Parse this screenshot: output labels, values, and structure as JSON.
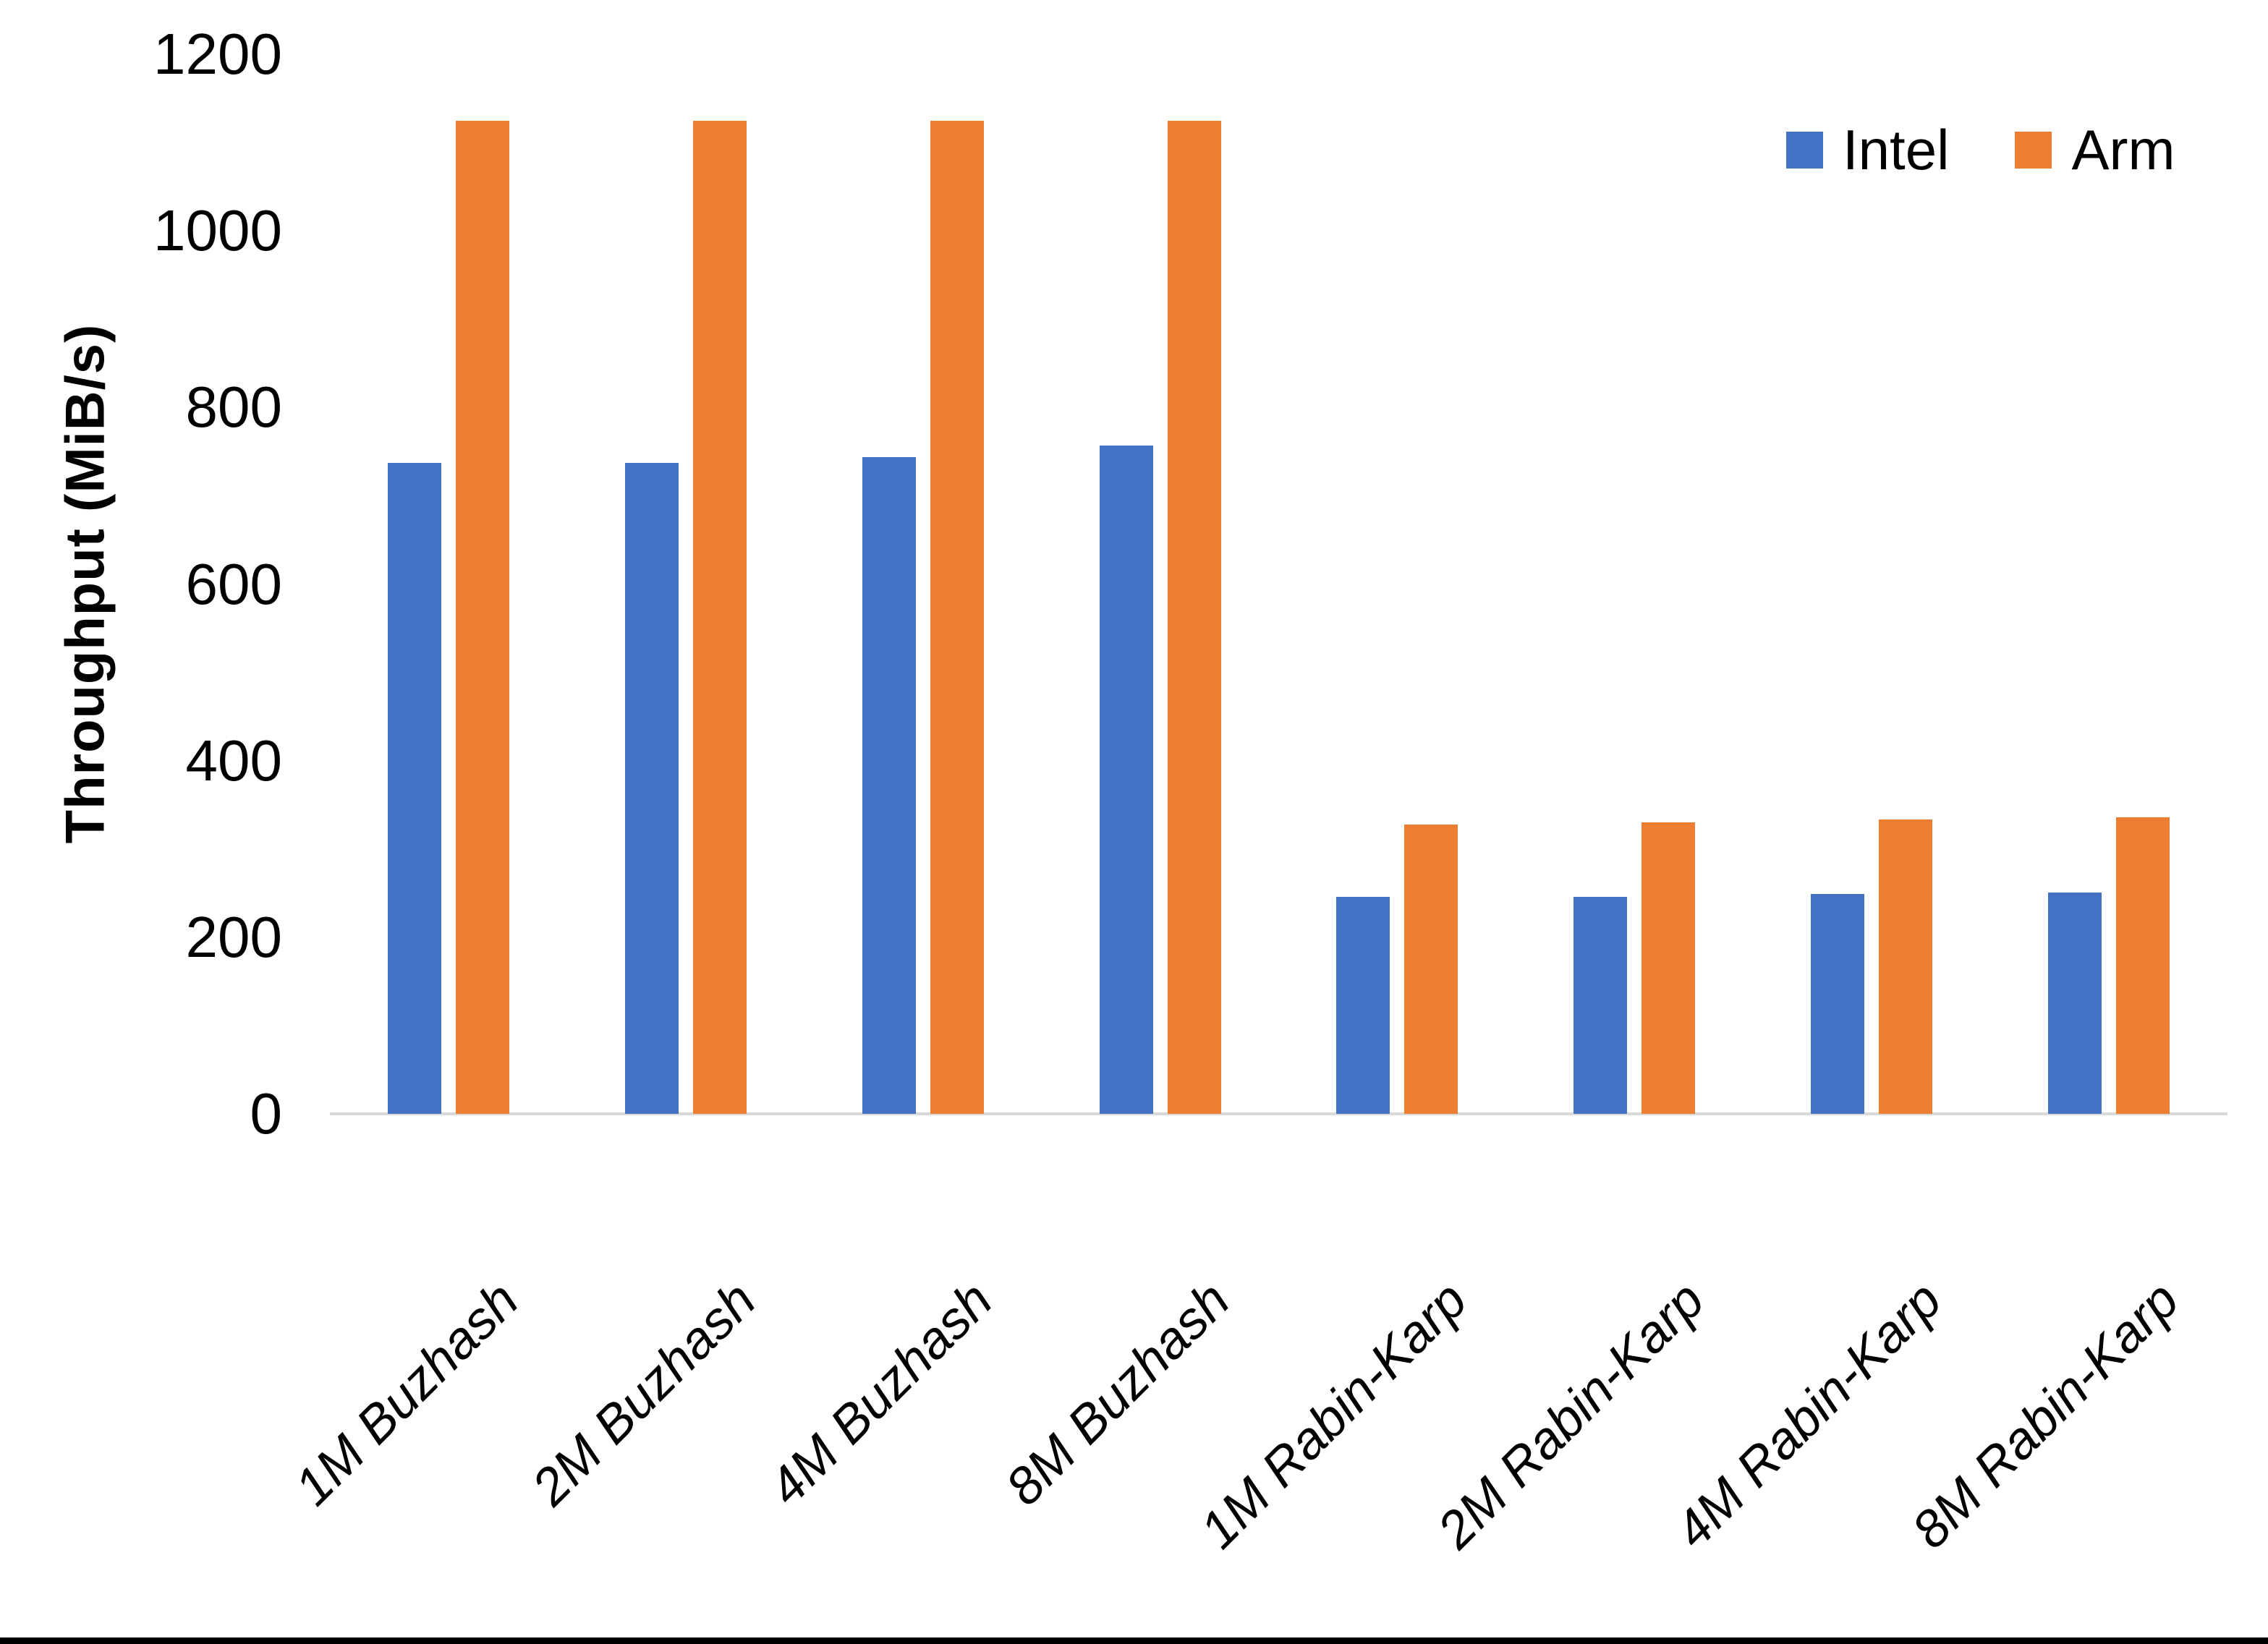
{
  "chart_data": {
    "type": "bar",
    "title": "",
    "xlabel": "",
    "ylabel": "Throughput (MiB/s)",
    "ylim": [
      0,
      1200
    ],
    "yticks": [
      0,
      200,
      400,
      600,
      800,
      1000,
      1200
    ],
    "grid": false,
    "legend_position": "top-right",
    "categories": [
      "1M Buzhash",
      "2M Buzhash",
      "4M Buzhash",
      "8M Buzhash",
      "1M Rabin-Karp",
      "2M Rabin-Karp",
      "4M Rabin-Karp",
      "8M Rabin-Karp"
    ],
    "series": [
      {
        "name": "Intel",
        "color": "#4472C4",
        "values": [
          737,
          737,
          744,
          757,
          246,
          246,
          249,
          251
        ]
      },
      {
        "name": "Arm",
        "color": "#ED7D31",
        "values": [
          1125,
          1125,
          1125,
          1125,
          328,
          330,
          333,
          336
        ]
      }
    ]
  },
  "colors": {
    "background": "#FFFFFF",
    "axis_line": "#D9D9D9",
    "text": "#000000",
    "bottom_border": "#000000"
  }
}
